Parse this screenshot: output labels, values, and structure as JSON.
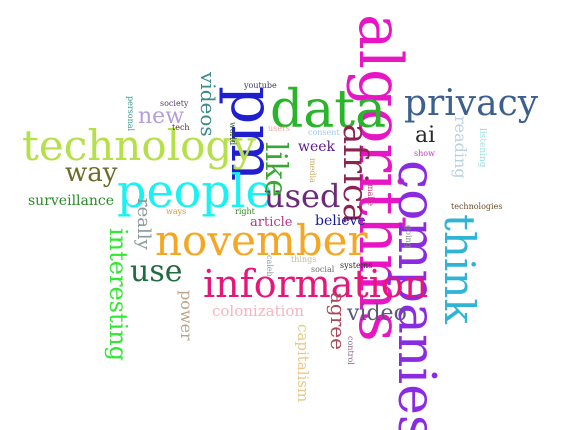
{
  "words": [
    {
      "text": "algorithms",
      "color": "#e815c4",
      "weight": 100,
      "orientation": "vertical"
    },
    {
      "text": "companies",
      "color": "#8a2be2",
      "weight": 92,
      "orientation": "vertical"
    },
    {
      "text": "pm",
      "color": "#1f1fcf",
      "weight": 88,
      "orientation": "vertical"
    },
    {
      "text": "data",
      "color": "#2ab42a",
      "weight": 86,
      "orientation": "horizontal"
    },
    {
      "text": "people",
      "color": "#19f2f2",
      "weight": 84,
      "orientation": "horizontal"
    },
    {
      "text": "november",
      "color": "#f5a623",
      "weight": 82,
      "orientation": "horizontal"
    },
    {
      "text": "technology",
      "color": "#b5e04a",
      "weight": 80,
      "orientation": "horizontal"
    },
    {
      "text": "information",
      "color": "#e8157a",
      "weight": 74,
      "orientation": "horizontal"
    },
    {
      "text": "privacy",
      "color": "#3b5f8f",
      "weight": 66,
      "orientation": "horizontal"
    },
    {
      "text": "think",
      "color": "#30b4d6",
      "weight": 64,
      "orientation": "vertical"
    },
    {
      "text": "africa",
      "color": "#8b2252",
      "weight": 60,
      "orientation": "vertical"
    },
    {
      "text": "used",
      "color": "#6b2a7a",
      "weight": 50,
      "orientation": "horizontal"
    },
    {
      "text": "like",
      "color": "#3aa635",
      "weight": 50,
      "orientation": "vertical"
    },
    {
      "text": "use",
      "color": "#1f6d3e",
      "weight": 48,
      "orientation": "horizontal"
    },
    {
      "text": "interesting",
      "color": "#33e633",
      "weight": 42,
      "orientation": "vertical"
    },
    {
      "text": "way",
      "color": "#6b6b2a",
      "weight": 40,
      "orientation": "horizontal"
    },
    {
      "text": "video",
      "color": "#5a5a78",
      "weight": 36,
      "orientation": "horizontal"
    },
    {
      "text": "agree",
      "color": "#a84a5a",
      "weight": 32,
      "orientation": "vertical"
    },
    {
      "text": "ai",
      "color": "#2a2a2a",
      "weight": 32,
      "orientation": "horizontal"
    },
    {
      "text": "new",
      "color": "#b39ddb",
      "weight": 32,
      "orientation": "horizontal"
    },
    {
      "text": "videos",
      "color": "#3a8a8a",
      "weight": 30,
      "orientation": "vertical"
    },
    {
      "text": "reading",
      "color": "#bcd0e0",
      "weight": 28,
      "orientation": "vertical"
    },
    {
      "text": "really",
      "color": "#8a9a98",
      "weight": 28,
      "orientation": "vertical"
    },
    {
      "text": "power",
      "color": "#bba58a",
      "weight": 26,
      "orientation": "vertical"
    },
    {
      "text": "colonization",
      "color": "#f4b5c1",
      "weight": 24,
      "orientation": "horizontal"
    },
    {
      "text": "capitalism",
      "color": "#e8c98a",
      "weight": 24,
      "orientation": "vertical"
    },
    {
      "text": "surveillance",
      "color": "#2a8a2a",
      "weight": 22,
      "orientation": "horizontal"
    },
    {
      "text": "week",
      "color": "#5a1a8a",
      "weight": 22,
      "orientation": "horizontal"
    },
    {
      "text": "believe",
      "color": "#1a1a9a",
      "weight": 22,
      "orientation": "horizontal"
    },
    {
      "text": "article",
      "color": "#c0338a",
      "weight": 20,
      "orientation": "horizontal"
    },
    {
      "text": "listening",
      "color": "#9adfe0",
      "weight": 14,
      "orientation": "vertical"
    },
    {
      "text": "technologies",
      "color": "#6b4a2a",
      "weight": 12,
      "orientation": "horizontal"
    },
    {
      "text": "media",
      "color": "#c7b06a",
      "weight": 12,
      "orientation": "vertical"
    },
    {
      "text": "make",
      "color": "#c73a7a",
      "weight": 12,
      "orientation": "vertical"
    },
    {
      "text": "show",
      "color": "#c53ac5",
      "weight": 12,
      "orientation": "horizontal"
    },
    {
      "text": "consent",
      "color": "#a8c8e8",
      "weight": 12,
      "orientation": "horizontal"
    },
    {
      "text": "users",
      "color": "#f0a8a8",
      "weight": 12,
      "orientation": "horizontal"
    },
    {
      "text": "world",
      "color": "#2a5a2a",
      "weight": 12,
      "orientation": "vertical"
    },
    {
      "text": "youtube",
      "color": "#3a3a5a",
      "weight": 11,
      "orientation": "horizontal"
    },
    {
      "text": "society",
      "color": "#5a3a6a",
      "weight": 11,
      "orientation": "horizontal"
    },
    {
      "text": "tech",
      "color": "#5a2a2a",
      "weight": 11,
      "orientation": "horizontal"
    },
    {
      "text": "personal",
      "color": "#3a9a8a",
      "weight": 11,
      "orientation": "vertical"
    },
    {
      "text": "ways",
      "color": "#d89a3a",
      "weight": 11,
      "orientation": "horizontal"
    },
    {
      "text": "right",
      "color": "#2a8a1a",
      "weight": 11,
      "orientation": "horizontal"
    },
    {
      "text": "things",
      "color": "#c8b89a",
      "weight": 11,
      "orientation": "horizontal"
    },
    {
      "text": "social",
      "color": "#6a6a6a",
      "weight": 11,
      "orientation": "horizontal"
    },
    {
      "text": "systems",
      "color": "#2a2a2a",
      "weight": 11,
      "orientation": "horizontal"
    },
    {
      "text": "caleb",
      "color": "#8aa0a8",
      "weight": 10,
      "orientation": "vertical"
    },
    {
      "text": "going",
      "color": "#8a8a8a",
      "weight": 10,
      "orientation": "vertical"
    },
    {
      "text": "control",
      "color": "#8a6a8a",
      "weight": 10,
      "orientation": "vertical"
    }
  ]
}
